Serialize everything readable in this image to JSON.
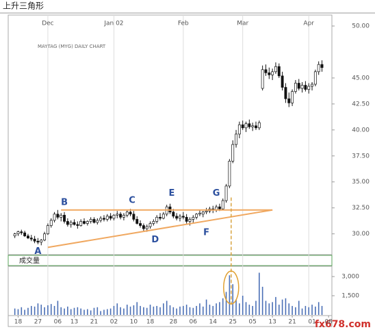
{
  "title": "上升三角形",
  "watermark": "fx678.com",
  "chart_data": {
    "type": "candlestick",
    "subtitle": "MAYTAG (MYG) DAILY CHART",
    "up_color": "#ffffff",
    "down_color": "#111111",
    "candles": [
      [
        29.8,
        30.1,
        29.6,
        30.0
      ],
      [
        30.0,
        30.3,
        29.8,
        30.2
      ],
      [
        30.2,
        30.4,
        29.9,
        30.1
      ],
      [
        30.1,
        30.3,
        29.7,
        29.8
      ],
      [
        29.8,
        30.0,
        29.5,
        29.6
      ],
      [
        29.6,
        29.9,
        29.3,
        29.5
      ],
      [
        29.5,
        29.8,
        29.1,
        29.3
      ],
      [
        29.3,
        29.6,
        29.0,
        29.2
      ],
      [
        29.2,
        29.5,
        28.9,
        29.4
      ],
      [
        29.4,
        30.2,
        29.3,
        30.0
      ],
      [
        30.0,
        31.0,
        29.9,
        30.8
      ],
      [
        30.8,
        31.5,
        30.6,
        31.3
      ],
      [
        31.3,
        32.1,
        31.1,
        31.9
      ],
      [
        31.9,
        32.3,
        31.4,
        31.6
      ],
      [
        31.6,
        32.0,
        31.2,
        31.8
      ],
      [
        31.8,
        32.1,
        31.0,
        31.2
      ],
      [
        31.2,
        31.5,
        30.7,
        30.9
      ],
      [
        30.9,
        31.3,
        30.6,
        31.1
      ],
      [
        31.1,
        31.4,
        30.8,
        30.9
      ],
      [
        30.9,
        31.2,
        30.5,
        30.8
      ],
      [
        30.8,
        31.4,
        30.7,
        31.2
      ],
      [
        31.2,
        31.5,
        30.9,
        31.0
      ],
      [
        31.0,
        31.3,
        30.8,
        31.2
      ],
      [
        31.2,
        31.6,
        31.0,
        31.4
      ],
      [
        31.4,
        31.6,
        31.0,
        31.1
      ],
      [
        31.1,
        31.5,
        30.9,
        31.3
      ],
      [
        31.3,
        31.7,
        31.1,
        31.5
      ],
      [
        31.5,
        31.8,
        31.2,
        31.4
      ],
      [
        31.4,
        31.9,
        31.2,
        31.7
      ],
      [
        31.7,
        32.0,
        31.3,
        31.5
      ],
      [
        31.5,
        31.9,
        31.3,
        31.8
      ],
      [
        31.8,
        32.2,
        31.5,
        31.9
      ],
      [
        31.9,
        32.1,
        31.4,
        31.6
      ],
      [
        31.6,
        32.0,
        31.3,
        31.8
      ],
      [
        31.8,
        32.3,
        31.6,
        32.1
      ],
      [
        32.1,
        32.4,
        31.7,
        31.9
      ],
      [
        31.9,
        32.2,
        31.2,
        31.4
      ],
      [
        31.4,
        31.7,
        30.9,
        31.0
      ],
      [
        31.0,
        31.3,
        30.6,
        30.8
      ],
      [
        30.8,
        31.0,
        30.3,
        30.5
      ],
      [
        30.5,
        30.9,
        30.2,
        30.7
      ],
      [
        30.7,
        31.2,
        30.5,
        31.0
      ],
      [
        31.0,
        31.4,
        30.8,
        31.2
      ],
      [
        31.2,
        31.8,
        31.0,
        31.6
      ],
      [
        31.6,
        32.0,
        31.3,
        31.5
      ],
      [
        31.5,
        32.1,
        31.4,
        31.9
      ],
      [
        31.9,
        32.8,
        31.7,
        32.6
      ],
      [
        32.6,
        32.9,
        31.9,
        32.1
      ],
      [
        32.1,
        32.4,
        31.5,
        31.7
      ],
      [
        31.7,
        32.0,
        31.3,
        31.5
      ],
      [
        31.5,
        31.9,
        31.2,
        31.7
      ],
      [
        31.7,
        32.1,
        31.4,
        31.6
      ],
      [
        31.6,
        31.9,
        31.0,
        31.2
      ],
      [
        31.2,
        31.6,
        30.8,
        31.4
      ],
      [
        31.4,
        31.8,
        31.1,
        31.6
      ],
      [
        31.6,
        32.0,
        31.4,
        31.9
      ],
      [
        31.9,
        32.3,
        31.7,
        32.0
      ],
      [
        31.9,
        32.2,
        31.6,
        32.1
      ],
      [
        32.1,
        32.5,
        31.9,
        32.2
      ],
      [
        32.2,
        32.6,
        32.0,
        32.4
      ],
      [
        32.4,
        32.7,
        32.0,
        32.3
      ],
      [
        32.3,
        32.8,
        32.1,
        32.6
      ],
      [
        32.6,
        32.9,
        32.2,
        32.4
      ],
      [
        32.4,
        33.4,
        32.3,
        33.2
      ],
      [
        33.2,
        34.8,
        33.0,
        34.6
      ],
      [
        34.6,
        37.2,
        34.4,
        37.0
      ],
      [
        37.0,
        39.0,
        36.8,
        38.6
      ],
      [
        38.6,
        40.0,
        38.3,
        39.6
      ],
      [
        39.6,
        40.8,
        39.2,
        40.5
      ],
      [
        40.5,
        40.9,
        40.0,
        40.2
      ],
      [
        40.2,
        40.8,
        39.8,
        40.6
      ],
      [
        40.6,
        41.0,
        40.1,
        40.3
      ],
      [
        40.3,
        40.7,
        39.9,
        40.4
      ],
      [
        40.4,
        40.8,
        40.0,
        40.2
      ],
      [
        40.2,
        40.9,
        40.0,
        40.7
      ],
      [
        44.0,
        46.2,
        43.8,
        45.8
      ],
      [
        45.8,
        46.3,
        45.2,
        45.5
      ],
      [
        45.5,
        46.0,
        44.9,
        45.3
      ],
      [
        45.3,
        45.9,
        44.8,
        45.6
      ],
      [
        45.6,
        46.5,
        45.4,
        46.1
      ],
      [
        46.1,
        46.4,
        45.0,
        45.2
      ],
      [
        45.2,
        45.6,
        43.8,
        44.1
      ],
      [
        44.1,
        44.5,
        42.6,
        43.0
      ],
      [
        43.0,
        43.6,
        42.2,
        42.6
      ],
      [
        42.6,
        43.9,
        42.3,
        43.7
      ],
      [
        43.7,
        44.8,
        43.5,
        44.5
      ],
      [
        44.5,
        44.9,
        43.8,
        44.0
      ],
      [
        44.0,
        44.6,
        43.6,
        44.3
      ],
      [
        44.3,
        44.7,
        43.7,
        43.9
      ],
      [
        43.9,
        44.5,
        43.5,
        44.2
      ],
      [
        44.2,
        44.6,
        43.8,
        44.4
      ],
      [
        44.4,
        45.8,
        44.2,
        45.6
      ],
      [
        45.6,
        46.6,
        45.3,
        46.3
      ],
      [
        46.3,
        46.7,
        45.6,
        46.0
      ]
    ],
    "xlim": [
      -2,
      96
    ],
    "xticks": [
      {
        "value": 1,
        "label": "18"
      },
      {
        "value": 7,
        "label": "27"
      },
      {
        "value": 13,
        "label": "06"
      },
      {
        "value": 18,
        "label": "13"
      },
      {
        "value": 24,
        "label": "21"
      },
      {
        "value": 30,
        "label": "02"
      },
      {
        "value": 36,
        "label": "10"
      },
      {
        "value": 41,
        "label": "18"
      },
      {
        "value": 48,
        "label": "28"
      },
      {
        "value": 54,
        "label": "06"
      },
      {
        "value": 60,
        "label": "14"
      },
      {
        "value": 66,
        "label": "25"
      },
      {
        "value": 72,
        "label": "05"
      },
      {
        "value": 78,
        "label": "13"
      },
      {
        "value": 84,
        "label": "21"
      },
      {
        "value": 90,
        "label": "01"
      },
      {
        "value": 95,
        "label": "08"
      }
    ],
    "month_ticks": [
      {
        "value": 10,
        "label": "Dec"
      },
      {
        "value": 30,
        "label": "Jan 02"
      },
      {
        "value": 51,
        "label": "Feb"
      },
      {
        "value": 69,
        "label": "Mar"
      },
      {
        "value": 89,
        "label": "Apr"
      }
    ],
    "ylim": [
      28,
      50
    ],
    "yticks": [
      {
        "value": 30,
        "label": "30.00"
      },
      {
        "value": 32.5,
        "label": "32.50"
      },
      {
        "value": 35,
        "label": "35.00"
      },
      {
        "value": 37.5,
        "label": "37.50"
      },
      {
        "value": 40,
        "label": "40.00"
      },
      {
        "value": 42.5,
        "label": "42.50"
      },
      {
        "value": 45,
        "label": "45.00"
      },
      {
        "value": 50,
        "label": "50.00"
      }
    ],
    "volume": {
      "label": "成交量",
      "color": "#4a6fb5",
      "ylim": [
        0,
        3750
      ],
      "yticks": [
        {
          "value": 1500,
          "label": "1,500"
        },
        {
          "value": 3000,
          "label": "3,000"
        }
      ],
      "values": [
        500,
        450,
        600,
        400,
        550,
        700,
        650,
        900,
        800,
        600,
        750,
        850,
        700,
        1100,
        600,
        500,
        650,
        450,
        550,
        600,
        500,
        400,
        450,
        350,
        550,
        600,
        300,
        400,
        450,
        500,
        700,
        900,
        600,
        500,
        800,
        650,
        750,
        1000,
        700,
        600,
        550,
        800,
        650,
        700,
        600,
        900,
        1100,
        750,
        600,
        500,
        650,
        700,
        800,
        600,
        550,
        700,
        900,
        650,
        1200,
        800,
        700,
        900,
        1000,
        1300,
        1800,
        3100,
        2400,
        1200,
        900,
        1500,
        1000,
        800,
        700,
        1100,
        3300,
        2200,
        1100,
        900,
        1000,
        1400,
        800,
        1200,
        1300,
        900,
        700,
        600,
        1100,
        500,
        700,
        600,
        800,
        650,
        1000,
        700
      ]
    },
    "trendlines": [
      {
        "x": [
          14,
          78
        ],
        "y": [
          32.3,
          32.3
        ],
        "color": "#f0a860"
      },
      {
        "x": [
          10,
          78
        ],
        "y": [
          28.7,
          32.3
        ],
        "color": "#f0a860"
      }
    ],
    "breakout": {
      "x": 65.5,
      "y": 33.5
    },
    "annotations": [
      {
        "text": "A",
        "x": 7,
        "y": 28.3
      },
      {
        "text": "B",
        "x": 15,
        "y": 33.0
      },
      {
        "text": "C",
        "x": 35.5,
        "y": 33.2
      },
      {
        "text": "D",
        "x": 42.5,
        "y": 29.4
      },
      {
        "text": "E",
        "x": 47.5,
        "y": 33.9
      },
      {
        "text": "F",
        "x": 58,
        "y": 30.1
      },
      {
        "text": "G",
        "x": 61,
        "y": 33.9
      }
    ]
  }
}
